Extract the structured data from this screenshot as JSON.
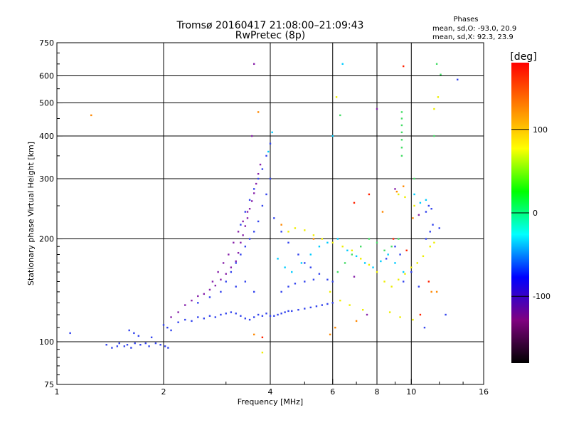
{
  "chart_data": {
    "type": "scatter",
    "title": "Tromsø 20160417 21:08:00–21:09:43",
    "subtitle": "RwPretec (8p)",
    "xlabel": "Frequency [MHz]",
    "ylabel": "Stationary phase Virtual Height [km]",
    "x_scale": "log",
    "y_scale": "log",
    "xlim": [
      1,
      16
    ],
    "ylim": [
      75,
      750
    ],
    "x_ticks": [
      1,
      2,
      4,
      6,
      8,
      10,
      16
    ],
    "y_ticks": [
      75,
      100,
      200,
      300,
      400,
      500,
      600,
      750
    ],
    "grid": true,
    "stats": {
      "title": "Phases",
      "line_o": "mean, sd,O: -93.0, 20.9",
      "line_x": "mean, sd,X:  92.3, 23.9"
    },
    "colorbar": {
      "label": "[deg]",
      "range": [
        -180,
        180
      ],
      "ticks": [
        100,
        0,
        -100
      ],
      "colors": [
        "#ff0000",
        "#ff8000",
        "#ffff00",
        "#00ff00",
        "#00ffff",
        "#0000ff",
        "#800080",
        "#000000"
      ]
    },
    "series": [
      {
        "color": "#3344ee",
        "points": [
          [
            1.09,
            106
          ],
          [
            1.38,
            98
          ],
          [
            1.43,
            96
          ],
          [
            1.48,
            97
          ],
          [
            1.5,
            99
          ],
          [
            1.55,
            97
          ],
          [
            1.58,
            98
          ],
          [
            1.62,
            96
          ],
          [
            1.66,
            99
          ],
          [
            1.72,
            98
          ],
          [
            1.78,
            99
          ],
          [
            1.82,
            97
          ],
          [
            1.9,
            99
          ],
          [
            1.96,
            98
          ],
          [
            2.02,
            97
          ],
          [
            2.06,
            96
          ],
          [
            1.6,
            108
          ],
          [
            1.65,
            106
          ],
          [
            1.7,
            104
          ],
          [
            1.85,
            103
          ],
          [
            2.0,
            112
          ],
          [
            2.05,
            110
          ],
          [
            2.1,
            108
          ],
          [
            2.2,
            114
          ],
          [
            2.3,
            116
          ],
          [
            2.4,
            115
          ],
          [
            2.5,
            118
          ],
          [
            2.6,
            117
          ],
          [
            2.7,
            119
          ],
          [
            2.8,
            118
          ],
          [
            2.9,
            120
          ],
          [
            3.0,
            121
          ],
          [
            3.1,
            122
          ],
          [
            3.2,
            121
          ],
          [
            3.3,
            119
          ],
          [
            3.4,
            117
          ],
          [
            3.5,
            116
          ],
          [
            3.6,
            118
          ],
          [
            3.7,
            120
          ],
          [
            3.8,
            119
          ],
          [
            3.9,
            121
          ],
          [
            4.0,
            119
          ],
          [
            4.1,
            119
          ],
          [
            4.2,
            120
          ],
          [
            4.3,
            121
          ],
          [
            4.4,
            122
          ],
          [
            4.5,
            123
          ],
          [
            4.6,
            123
          ],
          [
            4.8,
            124
          ],
          [
            5.0,
            125
          ],
          [
            5.2,
            126
          ],
          [
            5.4,
            127
          ],
          [
            5.6,
            128
          ],
          [
            5.8,
            129
          ],
          [
            6.0,
            130
          ],
          [
            3.2,
            170
          ],
          [
            3.3,
            180
          ],
          [
            3.4,
            190
          ],
          [
            3.5,
            200
          ],
          [
            3.6,
            210
          ],
          [
            3.7,
            225
          ],
          [
            3.8,
            250
          ],
          [
            3.9,
            270
          ],
          [
            4.0,
            300
          ],
          [
            3.3,
            220
          ],
          [
            3.4,
            240
          ],
          [
            3.5,
            260
          ],
          [
            3.6,
            280
          ],
          [
            3.7,
            300
          ],
          [
            3.8,
            320
          ],
          [
            3.9,
            350
          ],
          [
            4.0,
            380
          ],
          [
            4.1,
            230
          ],
          [
            4.3,
            210
          ],
          [
            4.5,
            195
          ],
          [
            4.8,
            180
          ],
          [
            5.0,
            170
          ],
          [
            5.2,
            165
          ],
          [
            5.5,
            158
          ],
          [
            5.8,
            152
          ],
          [
            6.0,
            150
          ],
          [
            4.3,
            140
          ],
          [
            4.5,
            145
          ],
          [
            4.7,
            148
          ],
          [
            5.0,
            150
          ],
          [
            5.3,
            152
          ],
          [
            3.0,
            150
          ],
          [
            3.1,
            160
          ],
          [
            3.2,
            145
          ],
          [
            3.4,
            150
          ],
          [
            3.6,
            140
          ],
          [
            2.5,
            130
          ],
          [
            2.7,
            135
          ],
          [
            2.9,
            140
          ],
          [
            9.5,
            150
          ],
          [
            10.0,
            160
          ],
          [
            10.5,
            145
          ],
          [
            11.0,
            240
          ],
          [
            11.2,
            250
          ],
          [
            11.4,
            245
          ],
          [
            11.0,
            200
          ],
          [
            11.3,
            210
          ],
          [
            11.5,
            220
          ],
          [
            9.0,
            190
          ],
          [
            9.3,
            180
          ],
          [
            8.5,
            175
          ],
          [
            12.0,
            215
          ],
          [
            13.5,
            585
          ],
          [
            12.5,
            120
          ],
          [
            10.9,
            110
          ]
        ]
      },
      {
        "color": "#8822aa",
        "points": [
          [
            2.4,
            132
          ],
          [
            2.5,
            136
          ],
          [
            2.6,
            138
          ],
          [
            2.7,
            142
          ],
          [
            2.8,
            146
          ],
          [
            2.9,
            152
          ],
          [
            3.0,
            158
          ],
          [
            3.1,
            165
          ],
          [
            3.2,
            172
          ],
          [
            3.25,
            182
          ],
          [
            3.3,
            195
          ],
          [
            3.35,
            205
          ],
          [
            3.4,
            218
          ],
          [
            3.45,
            230
          ],
          [
            3.5,
            245
          ],
          [
            3.55,
            258
          ],
          [
            3.6,
            272
          ],
          [
            3.65,
            290
          ],
          [
            3.7,
            310
          ],
          [
            3.75,
            330
          ],
          [
            2.75,
            150
          ],
          [
            2.85,
            160
          ],
          [
            2.95,
            170
          ],
          [
            3.05,
            180
          ],
          [
            3.15,
            195
          ],
          [
            3.25,
            210
          ],
          [
            3.35,
            225
          ],
          [
            3.45,
            240
          ],
          [
            2.3,
            128
          ],
          [
            2.2,
            122
          ],
          [
            2.1,
            118
          ],
          [
            3.6,
            650
          ],
          [
            3.55,
            400
          ],
          [
            9.0,
            280
          ],
          [
            10.5,
            235
          ],
          [
            8.0,
            480
          ],
          [
            6.9,
            155
          ],
          [
            7.5,
            120
          ]
        ]
      },
      {
        "color": "#00ccff",
        "points": [
          [
            4.2,
            175
          ],
          [
            4.4,
            165
          ],
          [
            4.6,
            160
          ],
          [
            4.9,
            170
          ],
          [
            5.2,
            180
          ],
          [
            5.5,
            190
          ],
          [
            5.8,
            195
          ],
          [
            6.2,
            200
          ],
          [
            6.6,
            185
          ],
          [
            7.0,
            178
          ],
          [
            7.4,
            170
          ],
          [
            7.8,
            165
          ],
          [
            8.2,
            172
          ],
          [
            8.6,
            180
          ],
          [
            9.0,
            170
          ],
          [
            9.5,
            160
          ],
          [
            6.4,
            650
          ],
          [
            6.0,
            400
          ],
          [
            4.05,
            410
          ],
          [
            3.95,
            360
          ],
          [
            10.2,
            270
          ],
          [
            10.6,
            255
          ],
          [
            11.0,
            260
          ]
        ]
      },
      {
        "color": "#44dd66",
        "points": [
          [
            6.2,
            160
          ],
          [
            6.5,
            170
          ],
          [
            6.8,
            180
          ],
          [
            7.2,
            190
          ],
          [
            7.6,
            200
          ],
          [
            8.0,
            195
          ],
          [
            8.4,
            185
          ],
          [
            8.8,
            190
          ],
          [
            9.2,
            200
          ],
          [
            9.4,
            470
          ],
          [
            9.4,
            450
          ],
          [
            9.4,
            430
          ],
          [
            9.4,
            410
          ],
          [
            9.4,
            390
          ],
          [
            9.4,
            370
          ],
          [
            9.4,
            350
          ],
          [
            11.6,
            400
          ],
          [
            11.8,
            650
          ],
          [
            12.1,
            605
          ],
          [
            6.3,
            460
          ],
          [
            10.2,
            300
          ]
        ]
      },
      {
        "color": "#eeee00",
        "points": [
          [
            4.5,
            210
          ],
          [
            4.7,
            215
          ],
          [
            5.0,
            212
          ],
          [
            5.3,
            205
          ],
          [
            5.6,
            200
          ],
          [
            6.0,
            195
          ],
          [
            6.4,
            190
          ],
          [
            6.8,
            185
          ],
          [
            7.2,
            175
          ],
          [
            7.6,
            168
          ],
          [
            8.0,
            160
          ],
          [
            8.4,
            150
          ],
          [
            8.8,
            145
          ],
          [
            9.2,
            152
          ],
          [
            9.6,
            158
          ],
          [
            10.0,
            165
          ],
          [
            10.4,
            170
          ],
          [
            10.8,
            178
          ],
          [
            9.2,
            270
          ],
          [
            9.6,
            265
          ],
          [
            10.2,
            250
          ],
          [
            11.6,
            480
          ],
          [
            11.9,
            520
          ],
          [
            6.15,
            520
          ],
          [
            3.8,
            93
          ],
          [
            5.9,
            140
          ],
          [
            6.3,
            132
          ],
          [
            6.7,
            128
          ],
          [
            7.3,
            124
          ],
          [
            8.7,
            122
          ],
          [
            9.3,
            118
          ],
          [
            10.1,
            116
          ],
          [
            11.3,
            190
          ],
          [
            11.6,
            195
          ]
        ]
      },
      {
        "color": "#ff8800",
        "points": [
          [
            1.25,
            460
          ],
          [
            3.7,
            470
          ],
          [
            4.3,
            220
          ],
          [
            5.9,
            105
          ],
          [
            6.1,
            110
          ],
          [
            7.0,
            115
          ],
          [
            8.3,
            240
          ],
          [
            9.1,
            275
          ],
          [
            9.5,
            285
          ],
          [
            10.1,
            230
          ],
          [
            11.4,
            140
          ],
          [
            11.8,
            140
          ],
          [
            3.6,
            105
          ],
          [
            5.3,
            200
          ]
        ]
      },
      {
        "color": "#ff2200",
        "points": [
          [
            7.6,
            270
          ],
          [
            9.5,
            640
          ],
          [
            6.9,
            255
          ],
          [
            9.7,
            185
          ],
          [
            10.6,
            120
          ],
          [
            3.8,
            103
          ],
          [
            8.9,
            200
          ],
          [
            11.2,
            150
          ]
        ]
      }
    ]
  }
}
